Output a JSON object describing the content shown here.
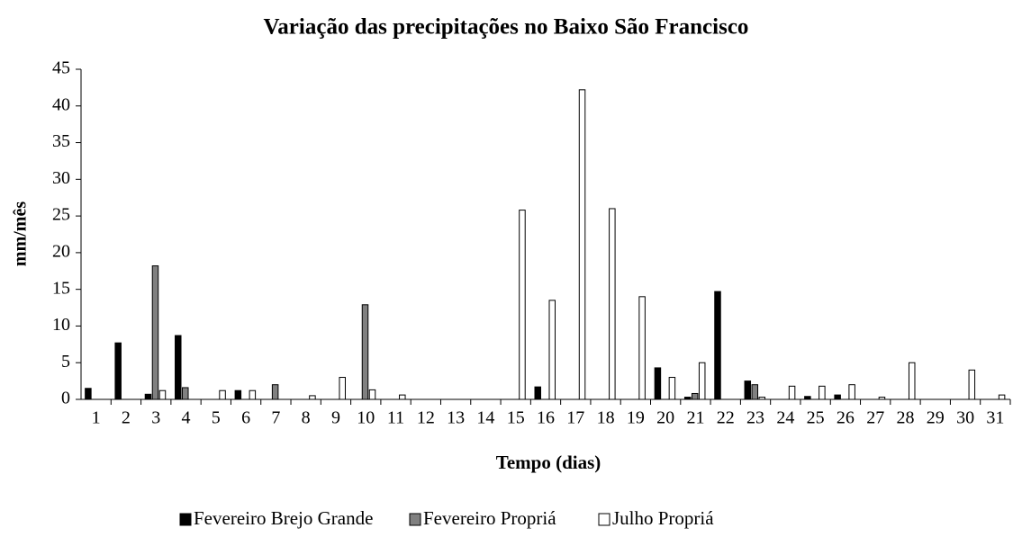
{
  "chart_data": {
    "type": "bar",
    "title": "Variação das precipitações no Baixo São Francisco",
    "y_label": "mm/mês",
    "x_label": "Tempo (dias)",
    "categories": [
      "1",
      "2",
      "3",
      "4",
      "5",
      "6",
      "7",
      "8",
      "9",
      "10",
      "11",
      "12",
      "13",
      "14",
      "15",
      "16",
      "17",
      "18",
      "19",
      "20",
      "21",
      "22",
      "23",
      "24",
      "25",
      "26",
      "27",
      "28",
      "29",
      "30",
      "31"
    ],
    "series": [
      {
        "name": "Fevereiro Brejo Grande",
        "color": "#000000",
        "values": [
          1.5,
          7.7,
          0.7,
          8.7,
          0,
          1.2,
          0,
          0,
          0,
          0,
          0,
          0,
          0,
          0,
          0,
          1.7,
          0,
          0,
          0,
          4.3,
          0.3,
          14.7,
          2.5,
          0,
          0.4,
          0.6,
          0,
          0,
          0,
          0,
          0
        ]
      },
      {
        "name": "Fevereiro Propriá",
        "color": "#808080",
        "values": [
          0,
          0,
          18.2,
          1.6,
          0,
          0,
          2,
          0,
          0,
          12.9,
          0,
          0,
          0,
          0,
          0,
          0,
          0,
          0,
          0,
          0,
          0.8,
          0,
          2,
          0,
          0,
          0,
          0,
          0,
          0,
          0,
          0
        ]
      },
      {
        "name": "Julho Propriá",
        "color": "#ffffff",
        "values": [
          0,
          0,
          1.2,
          0,
          1.2,
          1.2,
          0,
          0.5,
          3,
          1.3,
          0.6,
          0,
          0,
          0,
          25.8,
          13.5,
          42.2,
          26,
          14,
          3,
          5,
          0,
          0.3,
          1.8,
          1.8,
          2,
          0.3,
          5,
          0,
          4,
          0.6
        ]
      }
    ],
    "ylim": [
      0,
      45
    ],
    "yticks": [
      0,
      5,
      10,
      15,
      20,
      25,
      30,
      35,
      40,
      45
    ],
    "grid": false,
    "legend": "bottom"
  }
}
